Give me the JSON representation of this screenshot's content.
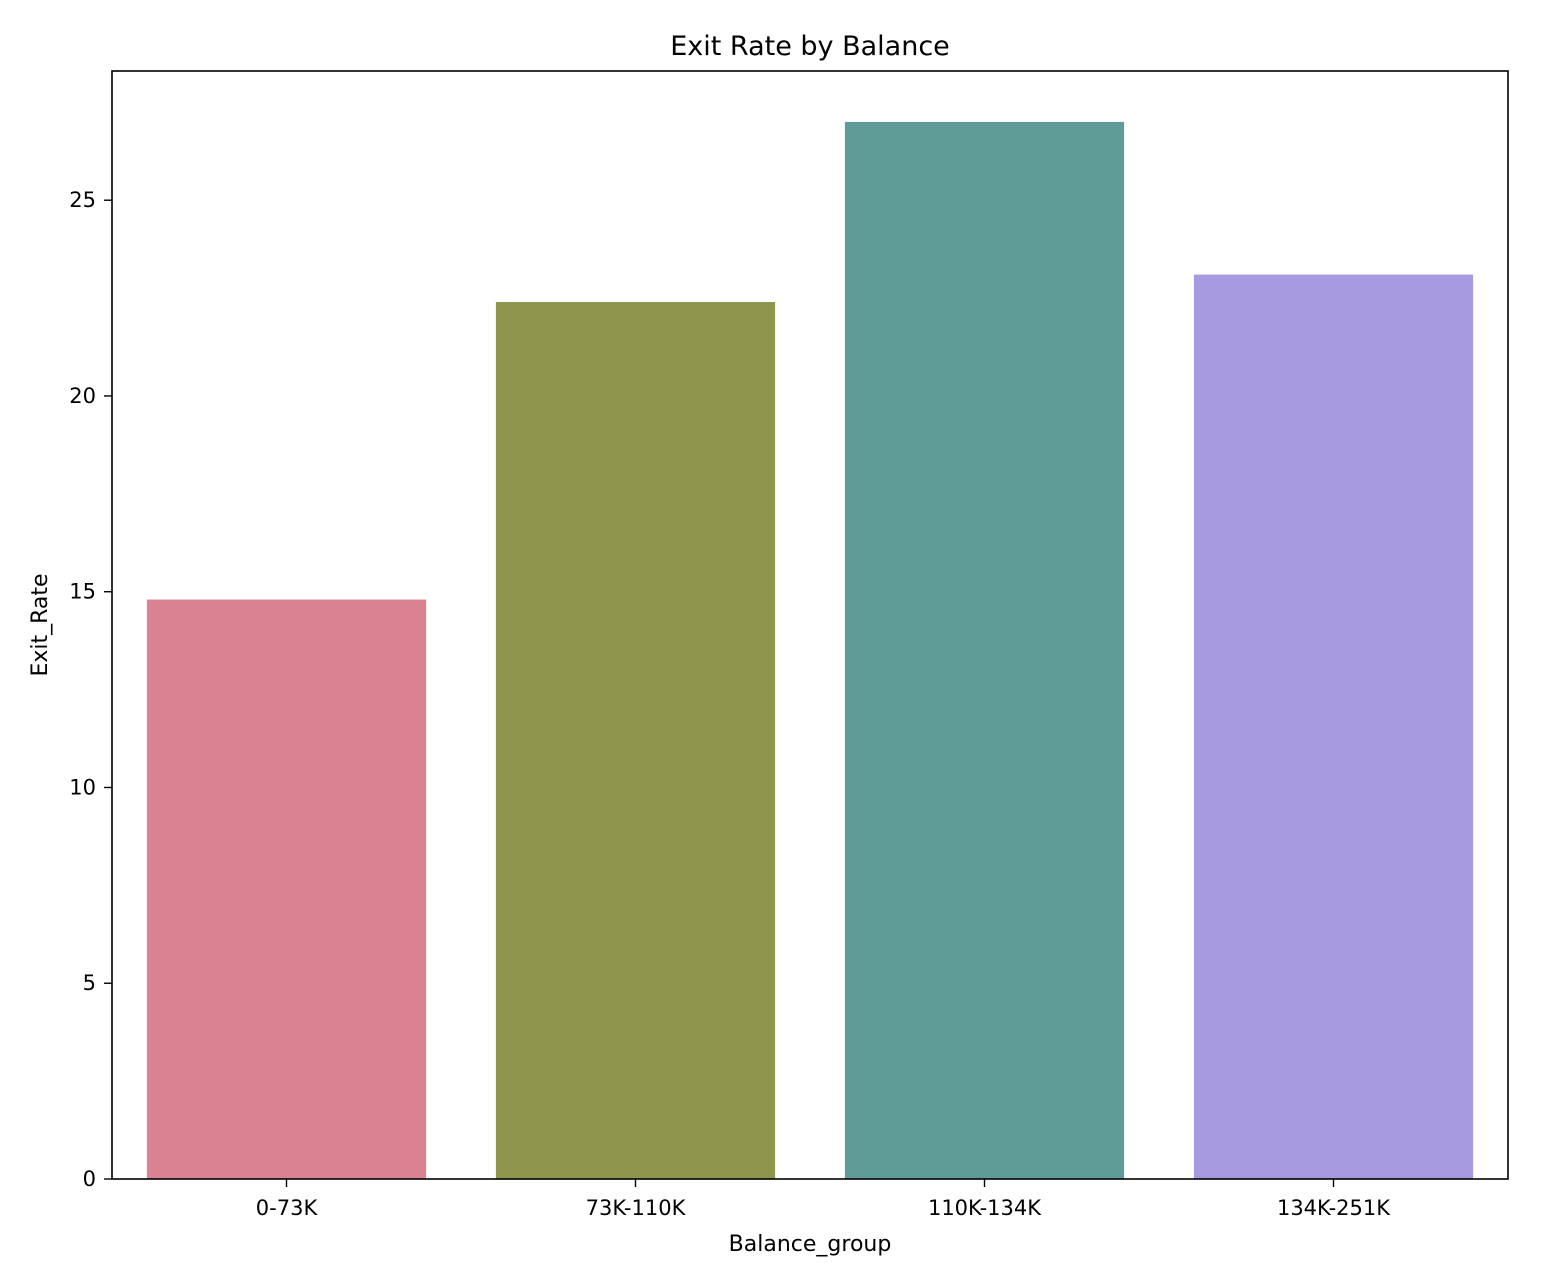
{
  "chart_data": {
    "type": "bar",
    "title": "Exit Rate by Balance",
    "xlabel": "Balance_group",
    "ylabel": "Exit_Rate",
    "categories": [
      "0-73K",
      "73K-110K",
      "110K-134K",
      "134K-251K"
    ],
    "values": [
      14.8,
      22.4,
      27.0,
      23.1
    ],
    "colors": [
      "#d98392",
      "#8e964e",
      "#5f9c97",
      "#a79ae1"
    ],
    "ylim": [
      0,
      28.3
    ],
    "yticks": [
      0,
      5,
      10,
      15,
      20,
      25
    ],
    "grid": false,
    "legend": "none"
  }
}
